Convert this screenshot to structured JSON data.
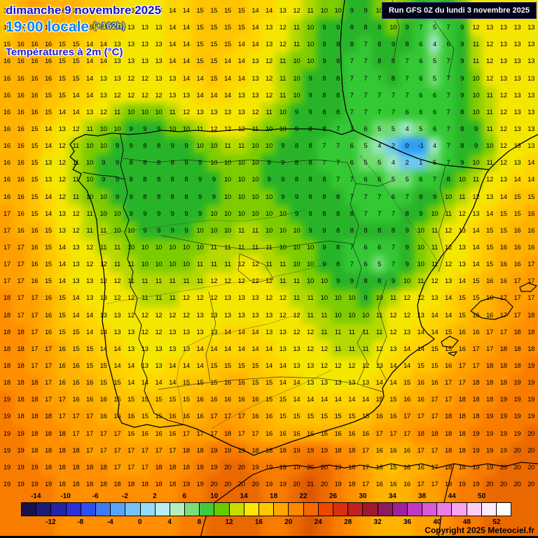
{
  "header": {
    "date_line": "dimanche 9 novembre 2025",
    "time_line": "19:00 locale",
    "offset_label": "(+162h)",
    "variable_label": "Températures à 2m (°C)"
  },
  "run_info": {
    "label": "Run GFS 0Z du lundi 3 novembre 2025"
  },
  "copyright": {
    "label": "Copyright 2025 Meteociel.fr"
  },
  "colors": {
    "date_blue": "#1414cc",
    "time_blue": "#0a82f0",
    "offset_yellow": "#ffe400",
    "outline_blue": "#1040c0",
    "variable_blue": "#2020d0",
    "run_bg": "#000016",
    "cold_spot_blue": "#2e9df5",
    "warm_orange": "#f87c00"
  },
  "legend": {
    "boundaries": [
      -14,
      -12,
      -10,
      -8,
      -6,
      -4,
      -2,
      0,
      2,
      4,
      6,
      8,
      10,
      12,
      14,
      16,
      18,
      20,
      22,
      24,
      26,
      28,
      30,
      32,
      34,
      36,
      38,
      40,
      44,
      48,
      50,
      52
    ],
    "cell_colors": [
      "#14144a",
      "#1c1c78",
      "#2424a8",
      "#2e2ed8",
      "#2a52ee",
      "#3c7cf4",
      "#58a4f8",
      "#74c4fb",
      "#94dcfd",
      "#b6eef8",
      "#b2eec0",
      "#7ade7a",
      "#3ecc3e",
      "#66cc00",
      "#c8dc00",
      "#ffe600",
      "#ffc800",
      "#ffa800",
      "#ff8800",
      "#fa6800",
      "#ec4800",
      "#d83010",
      "#c02020",
      "#a01830",
      "#8c1c5c",
      "#a020a0",
      "#c038c8",
      "#da58da",
      "#ec7ce8",
      "#f6a4ee",
      "#fccef6",
      "#feeafc",
      "#ffffff"
    ]
  },
  "temp_colors": [
    {
      "max": -2,
      "color": "#2d4fe0"
    },
    {
      "max": 0,
      "color": "#2e9df5"
    },
    {
      "max": 2,
      "color": "#6cc8f0"
    },
    {
      "max": 4,
      "color": "#9ae6c0"
    },
    {
      "max": 5,
      "color": "#6edc6e"
    },
    {
      "max": 7,
      "color": "#34c834"
    },
    {
      "max": 9,
      "color": "#28b428"
    },
    {
      "max": 10,
      "color": "#7ccc00"
    },
    {
      "max": 11,
      "color": "#b4d800"
    },
    {
      "max": 13,
      "color": "#f5e600"
    },
    {
      "max": 14,
      "color": "#ffd400"
    },
    {
      "max": 15,
      "color": "#ffc400"
    },
    {
      "max": 16,
      "color": "#ffb200"
    },
    {
      "max": 17,
      "color": "#ffa000"
    },
    {
      "max": 18,
      "color": "#ff8e00"
    },
    {
      "max": 19,
      "color": "#f87c00"
    },
    {
      "max": 20,
      "color": "#ea6800"
    },
    {
      "max": 99,
      "color": "#dc5600"
    }
  ],
  "grid": {
    "cols": 39,
    "rows": 29,
    "values": [
      "15 16 17 16 16 16 15 15 14 13 13 13 14 14 15 15 15 15 14 14 13 12 11 10 10 9 9 10 11 10 9 6 8 10 12 13 13 13 13",
      "15 16 16 16 16 15 15 14 14 13 13 13 14 14 15 15 15 15 14 13 12 11 10 9 9 8 8 9 10 9 7 5 7 9 12 13 13 13 13",
      "15 16 16 16 15 15 14 14 13 13 13 13 14 14 15 15 15 14 14 13 12 11 10 9 8 8 7 8 9 8 6 4 6 9 11 12 13 13 13",
      "16 16 16 16 15 15 14 14 13 13 13 13 14 14 15 15 14 14 13 12 11 10 10 9 8 7 7 8 8 7 6 5 7 9 11 12 13 13 13",
      "16 16 16 16 15 15 14 13 13 12 12 13 13 14 14 15 14 14 13 12 11 10 9 8 8 7 7 7 8 7 6 5 7 9 10 12 13 13 13",
      "16 16 16 15 15 14 14 13 12 12 12 12 13 13 14 14 14 13 13 12 11 10 9 8 8 7 7 7 7 7 6 6 7 9 10 11 12 13 13",
      "16 16 16 15 14 14 13 12 11 10 10 10 11 12 13 13 13 13 12 11 10 9 9 8 8 7 7 7 7 6 6 6 7 8 10 11 12 13 13",
      "16 16 15 14 13 12 11 10 10 9 9 9 10 10 11 12 12 12 11 10 10 9 8 8 7 7 6 5 5 4 5 6 7 8 9 11 12 13 13",
      "16 16 15 14 12 11 10 10 9 9 8 8 9 9 10 10 11 11 10 10 9 8 8 7 7 6 5 4 2 0 -1 4 7 8 9 10 12 13 13",
      "16 16 15 13 12 11 10 9 9 8 8 8 8 9 9 10 10 10 10 9 9 8 8 7 7 6 5 5 4 2 1 5 7 9 10 11 12 13 14",
      "16 16 15 13 12 11 10 9 9 8 8 8 8 8 9 9 10 10 10 9 9 8 8 8 7 7 6 6 5 5 6 7 8 10 11 12 13 14 14",
      "16 16 15 14 12 11 10 10 9 9 8 8 8 8 9 9 10 10 10 10 9 9 8 8 8 7 7 7 6 7 8 9 10 11 12 13 14 15 15",
      "17 16 15 14 13 12 11 10 10 9 9 9 9 9 9 10 10 10 10 10 10 9 9 8 8 8 7 7 7 8 9 10 11 12 13 14 15 15 16",
      "17 16 16 15 13 12 11 11 10 10 9 9 9 9 10 10 10 11 11 10 10 10 9 9 8 8 8 8 8 9 10 11 12 13 14 15 15 16 16",
      "17 17 16 15 14 13 12 11 11 10 10 10 10 10 10 11 11 11 11 11 10 10 10 9 8 7 6 6 7 9 10 11 12 13 14 15 16 16 16",
      "17 17 16 15 14 13 12 12 11 11 10 10 10 10 11 11 11 12 12 11 11 10 10 9 8 7 6 5 7 9 10 11 12 13 14 15 16 16 17",
      "17 17 16 15 14 13 13 12 12 11 11 11 11 11 11 12 12 12 12 12 11 11 10 10 9 9 8 8 9 10 11 12 13 14 15 16 16 17 17",
      "18 17 17 16 15 14 13 13 12 12 11 11 11 12 12 12 13 13 13 12 12 11 11 10 10 10 9 10 11 12 12 13 14 15 15 16 17 17 17",
      "18 17 17 16 15 14 14 13 13 12 12 12 12 12 13 13 13 13 13 13 12 12 11 11 10 10 10 11 12 12 13 14 14 15 16 16 17 17 18",
      "18 18 17 16 15 15 14 14 13 13 12 12 13 13 13 13 14 14 14 13 13 12 12 11 11 11 11 11 12 13 14 14 15 16 16 17 17 18 18",
      "18 18 17 17 16 15 15 14 14 13 13 13 13 13 14 14 14 14 14 14 13 13 12 12 11 11 11 12 13 14 14 15 15 16 17 17 18 18 18",
      "18 18 17 17 16 16 15 15 14 14 13 13 14 14 14 15 15 15 15 14 14 13 13 12 12 12 12 13 14 14 15 15 16 17 17 18 18 18 19",
      "18 18 18 17 16 16 16 15 15 14 14 14 14 15 15 15 16 16 15 15 14 14 13 13 13 13 13 14 14 15 16 16 17 17 18 18 18 19 19",
      "19 18 18 17 17 16 16 16 15 15 15 15 15 15 16 16 16 16 16 15 15 14 14 14 14 14 14 15 15 16 16 17 17 18 18 18 19 19 19",
      "19 18 18 18 17 17 17 16 16 16 15 15 16 16 16 17 17 17 16 16 15 15 15 15 15 15 15 16 16 17 17 17 18 18 18 19 19 19 19",
      "19 19 18 18 18 17 17 17 17 16 16 16 16 17 17 17 18 17 17 16 16 16 16 16 16 16 16 17 17 17 18 18 18 18 19 19 19 19 20",
      "19 19 18 18 18 18 17 17 17 17 17 17 17 18 18 19 19 19 18 18 18 19 19 19 18 18 17 16 16 16 17 17 18 18 19 19 19 20 20",
      "19 19 19 18 18 18 18 18 17 17 17 18 18 18 19 19 20 20 19 19 19 19 20 20 19 18 17 16 15 16 16 17 18 18 19 19 20 20 20",
      "19 19 19 19 18 18 18 18 18 18 18 18 18 19 19 20 20 20 20 19 19 20 21 20 19 18 17 16 16 16 17 17 18 19 19 20 20 20 20"
    ]
  }
}
